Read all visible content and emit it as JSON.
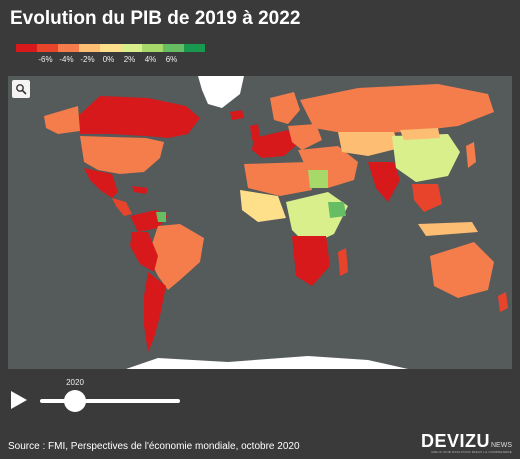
{
  "title": "Evolution du PIB de 2019 à 2022",
  "legend": {
    "colors": [
      "#d7191c",
      "#e8432b",
      "#f57d4c",
      "#fdbd72",
      "#fee08b",
      "#d9ef8b",
      "#a6d96a",
      "#66bd63",
      "#1a9850"
    ],
    "labels": [
      "-6%",
      "-4%",
      "-2%",
      "0%",
      "2%",
      "4%",
      "6%"
    ]
  },
  "map": {
    "ocean_color": "#555a5b",
    "polar_color": "#ffffff",
    "search_icon": "search-icon"
  },
  "player": {
    "play_icon": "play-icon",
    "year": "2020",
    "position": 0.25
  },
  "source": "Source : FMI, Perspectives de l'économie mondiale, octobre 2020",
  "brand": {
    "main": "DEVIZU",
    "sub": "NEWS",
    "tagline": "MIEUX VOIR DATA POUR MIEUX LA COMPRENDRE"
  }
}
